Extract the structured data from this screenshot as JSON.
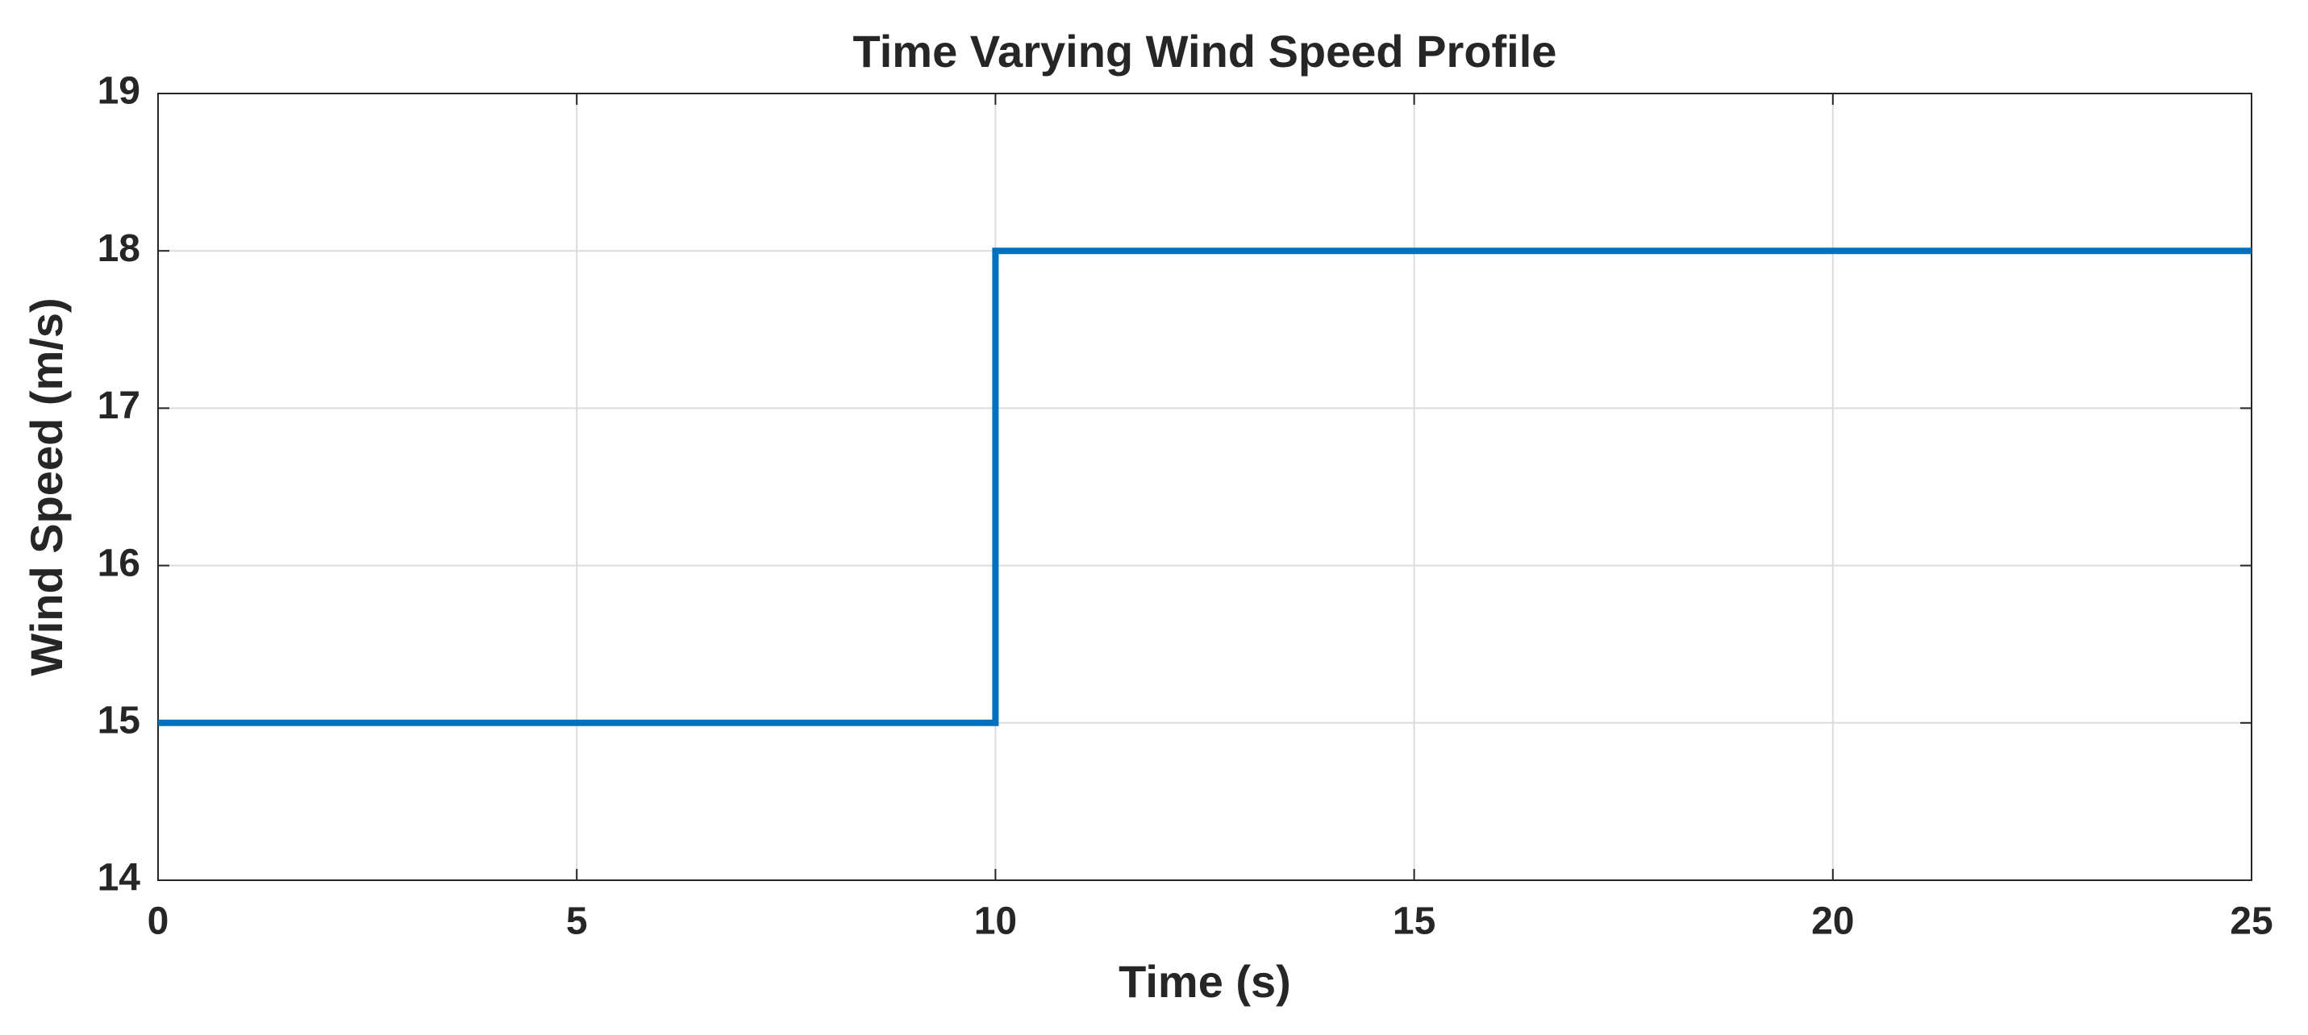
{
  "chart_data": {
    "type": "line",
    "title": "Time Varying Wind Speed Profile",
    "x_label": "Time (s)",
    "y_label": "Wind Speed (m/s)",
    "x": [
      0,
      10,
      10,
      25
    ],
    "series": [
      {
        "name": "Wind Speed",
        "color": "#0072bd",
        "values": [
          15,
          15,
          18,
          18
        ]
      }
    ],
    "xlim": [
      0,
      25
    ],
    "xticks": [
      0,
      5,
      10,
      15,
      20,
      25
    ],
    "ylim": [
      14,
      19
    ],
    "yticks": [
      14,
      15,
      16,
      17,
      18,
      19
    ],
    "grid": true
  }
}
